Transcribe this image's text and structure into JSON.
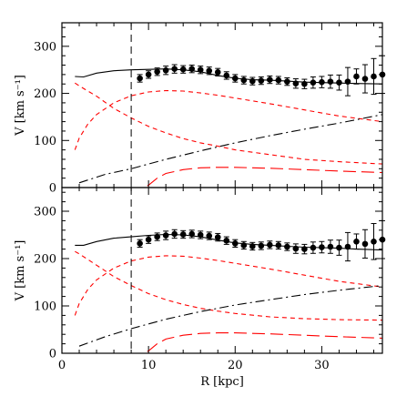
{
  "chart_data": [
    {
      "type": "line",
      "panel": "top",
      "xlabel": "",
      "ylabel": "V [km s⁻¹]",
      "xlim": [
        0,
        37
      ],
      "ylim": [
        0,
        350
      ],
      "xticks": [
        0,
        10,
        20,
        30
      ],
      "yticks": [
        0,
        100,
        200,
        300
      ],
      "xtick_labels_shown": false,
      "vline_x": 8,
      "observed": {
        "x": [
          9,
          10,
          11,
          12,
          13,
          14,
          15,
          16,
          17,
          18,
          19,
          20,
          21,
          22,
          23,
          24,
          25,
          26,
          27,
          28,
          29,
          30,
          31,
          32,
          33,
          34,
          35,
          36,
          37
        ],
        "y": [
          232,
          240,
          246,
          249,
          252,
          251,
          252,
          250,
          248,
          245,
          238,
          232,
          228,
          226,
          227,
          229,
          228,
          225,
          221,
          220,
          223,
          224,
          225,
          223,
          225,
          236,
          231,
          236,
          240
        ],
        "err": [
          8,
          8,
          8,
          9,
          9,
          8,
          8,
          8,
          8,
          8,
          8,
          8,
          8,
          8,
          8,
          8,
          8,
          8,
          10,
          10,
          12,
          12,
          14,
          16,
          30,
          16,
          30,
          38,
          40
        ]
      },
      "series": [
        {
          "style": "solid",
          "color": "#000000",
          "x": [
            1.5,
            2.5,
            4,
            6,
            8,
            10,
            12,
            14,
            16,
            18,
            20,
            22,
            24,
            26,
            28,
            30,
            32,
            34,
            37
          ],
          "y": [
            236,
            235,
            243,
            248,
            250,
            251,
            252,
            250,
            246,
            238,
            232,
            229,
            228,
            226,
            224,
            223,
            222,
            221,
            220
          ]
        },
        {
          "style": "short-dash",
          "color": "#ff0000",
          "x": [
            1.5,
            2,
            3,
            4,
            6,
            8,
            10,
            12,
            14,
            16,
            18,
            20,
            24,
            28,
            32,
            37
          ],
          "y": [
            80,
            105,
            135,
            155,
            180,
            195,
            203,
            206,
            205,
            201,
            196,
            190,
            178,
            165,
            152,
            140
          ]
        },
        {
          "style": "short-dash",
          "color": "#ff0000",
          "x": [
            1.5,
            2,
            3,
            4,
            6,
            8,
            10,
            12,
            14,
            16,
            18,
            20,
            24,
            28,
            32,
            37
          ],
          "y": [
            222,
            216,
            205,
            194,
            168,
            148,
            130,
            116,
            104,
            95,
            88,
            80,
            70,
            60,
            55,
            50
          ]
        },
        {
          "style": "dash-dot",
          "color": "#000000",
          "x": [
            2,
            5,
            8,
            12,
            16,
            20,
            24,
            28,
            32,
            37
          ],
          "y": [
            10,
            28,
            40,
            60,
            78,
            95,
            110,
            124,
            137,
            155
          ]
        },
        {
          "style": "long-dash",
          "color": "#ff0000",
          "x": [
            1.5,
            5,
            9,
            9.5,
            10,
            11,
            12,
            14,
            16,
            18,
            20,
            24,
            28,
            32,
            37
          ],
          "y": [
            0,
            0,
            0,
            0,
            5,
            20,
            30,
            38,
            42,
            43,
            43,
            41,
            38,
            35,
            32
          ]
        }
      ]
    },
    {
      "type": "line",
      "panel": "bottom",
      "xlabel": "R [kpc]",
      "ylabel": "V [km s⁻¹]",
      "xlim": [
        0,
        37
      ],
      "ylim": [
        0,
        350
      ],
      "xticks": [
        0,
        10,
        20,
        30
      ],
      "yticks": [
        0,
        100,
        200,
        300
      ],
      "xtick_labels_shown": true,
      "vline_x": 8,
      "observed": {
        "x": [
          9,
          10,
          11,
          12,
          13,
          14,
          15,
          16,
          17,
          18,
          19,
          20,
          21,
          22,
          23,
          24,
          25,
          26,
          27,
          28,
          29,
          30,
          31,
          32,
          33,
          34,
          35,
          36,
          37
        ],
        "y": [
          232,
          240,
          246,
          249,
          252,
          251,
          252,
          250,
          248,
          245,
          238,
          232,
          228,
          226,
          227,
          229,
          228,
          225,
          221,
          220,
          223,
          224,
          225,
          223,
          225,
          236,
          231,
          236,
          240
        ],
        "err": [
          8,
          8,
          8,
          9,
          9,
          8,
          8,
          8,
          8,
          8,
          8,
          8,
          8,
          8,
          8,
          8,
          8,
          8,
          10,
          10,
          12,
          12,
          14,
          16,
          30,
          16,
          30,
          38,
          40
        ]
      },
      "series": [
        {
          "style": "solid",
          "color": "#000000",
          "x": [
            1.5,
            2.5,
            4,
            6,
            8,
            10,
            12,
            14,
            16,
            18,
            20,
            22,
            24,
            26,
            28,
            30,
            32,
            34,
            37
          ],
          "y": [
            228,
            228,
            236,
            243,
            246,
            249,
            251,
            250,
            246,
            239,
            233,
            230,
            228,
            226,
            224,
            223,
            222,
            220,
            218
          ]
        },
        {
          "style": "short-dash",
          "color": "#ff0000",
          "x": [
            1.5,
            2,
            3,
            4,
            6,
            8,
            10,
            12,
            14,
            16,
            18,
            20,
            24,
            28,
            32,
            37
          ],
          "y": [
            80,
            105,
            135,
            155,
            180,
            195,
            203,
            206,
            205,
            201,
            196,
            190,
            178,
            165,
            152,
            140
          ]
        },
        {
          "style": "short-dash",
          "color": "#ff0000",
          "x": [
            1.5,
            2,
            3,
            4,
            6,
            8,
            10,
            12,
            14,
            16,
            18,
            20,
            24,
            28,
            32,
            37
          ],
          "y": [
            215,
            210,
            198,
            186,
            162,
            143,
            126,
            113,
            103,
            95,
            89,
            84,
            77,
            73,
            71,
            70
          ]
        },
        {
          "style": "dash-dot",
          "color": "#000000",
          "x": [
            2,
            5,
            8,
            12,
            16,
            20,
            24,
            28,
            32,
            37
          ],
          "y": [
            15,
            35,
            52,
            72,
            88,
            102,
            113,
            124,
            133,
            143
          ]
        },
        {
          "style": "long-dash",
          "color": "#ff0000",
          "x": [
            1.5,
            5,
            9,
            9.5,
            10,
            11,
            12,
            14,
            16,
            18,
            20,
            24,
            28,
            32,
            37
          ],
          "y": [
            0,
            0,
            0,
            0,
            5,
            20,
            30,
            38,
            42,
            43,
            43,
            41,
            38,
            35,
            32
          ]
        }
      ]
    }
  ]
}
